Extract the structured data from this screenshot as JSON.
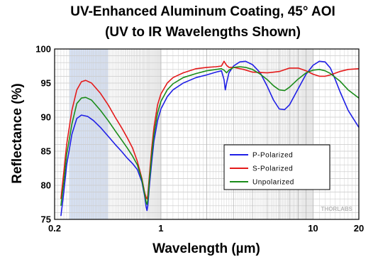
{
  "chart_data": {
    "type": "line",
    "title": "UV-Enhanced Aluminum Coating, 45° AOI",
    "subtitle": "(UV to IR Wavelengths Shown)",
    "xlabel": "Wavelength (µm)",
    "ylabel": "Reflectance (%)",
    "xscale": "log",
    "xlim": [
      0.2,
      20
    ],
    "ylim": [
      75,
      100
    ],
    "xticks": [
      {
        "value": 0.2,
        "label": "0.2"
      },
      {
        "value": 1,
        "label": "1"
      },
      {
        "value": 10,
        "label": "10"
      },
      {
        "value": 20,
        "label": "20"
      }
    ],
    "yticks": [
      75,
      80,
      85,
      90,
      95,
      100
    ],
    "grid": true,
    "highlight_band": {
      "x": [
        0.25,
        0.45
      ],
      "color": "#d6e0f2"
    },
    "legend_position": "bottom-right",
    "watermark": "THORLABS",
    "series": [
      {
        "name": "P-Polarized",
        "color": "#1f1fe6",
        "points": [
          [
            0.22,
            75.5
          ],
          [
            0.23,
            79
          ],
          [
            0.24,
            83
          ],
          [
            0.26,
            87.5
          ],
          [
            0.28,
            89.8
          ],
          [
            0.3,
            90.3
          ],
          [
            0.33,
            90.1
          ],
          [
            0.36,
            89.5
          ],
          [
            0.4,
            88.5
          ],
          [
            0.45,
            87.2
          ],
          [
            0.5,
            86
          ],
          [
            0.55,
            85
          ],
          [
            0.6,
            84
          ],
          [
            0.65,
            83.2
          ],
          [
            0.7,
            82.3
          ],
          [
            0.75,
            80.5
          ],
          [
            0.78,
            78.5
          ],
          [
            0.8,
            76.8
          ],
          [
            0.81,
            76.3
          ],
          [
            0.82,
            77
          ],
          [
            0.84,
            80
          ],
          [
            0.87,
            83.5
          ],
          [
            0.9,
            86.5
          ],
          [
            0.95,
            89.5
          ],
          [
            1.0,
            91.2
          ],
          [
            1.1,
            93
          ],
          [
            1.2,
            94
          ],
          [
            1.4,
            95
          ],
          [
            1.7,
            95.8
          ],
          [
            2.0,
            96.2
          ],
          [
            2.3,
            96.6
          ],
          [
            2.5,
            96.8
          ],
          [
            2.6,
            95.5
          ],
          [
            2.65,
            94
          ],
          [
            2.7,
            95
          ],
          [
            2.8,
            96.5
          ],
          [
            3.0,
            97.5
          ],
          [
            3.3,
            98.1
          ],
          [
            3.6,
            98.2
          ],
          [
            4.0,
            97.7
          ],
          [
            4.5,
            96.5
          ],
          [
            5.0,
            94.5
          ],
          [
            5.5,
            92.5
          ],
          [
            6.0,
            91.2
          ],
          [
            6.5,
            91.1
          ],
          [
            7.0,
            91.8
          ],
          [
            8.0,
            94.2
          ],
          [
            9.0,
            96.3
          ],
          [
            10,
            97.6
          ],
          [
            11,
            98.2
          ],
          [
            12,
            98.1
          ],
          [
            13,
            97.2
          ],
          [
            14,
            95.5
          ],
          [
            15,
            93.8
          ],
          [
            17,
            91
          ],
          [
            20,
            88.5
          ]
        ]
      },
      {
        "name": "S-Polarized",
        "color": "#e41a1a",
        "points": [
          [
            0.22,
            78
          ],
          [
            0.23,
            82
          ],
          [
            0.24,
            86
          ],
          [
            0.26,
            91
          ],
          [
            0.28,
            94
          ],
          [
            0.3,
            95.2
          ],
          [
            0.32,
            95.4
          ],
          [
            0.35,
            95
          ],
          [
            0.4,
            93.5
          ],
          [
            0.45,
            91.8
          ],
          [
            0.5,
            90
          ],
          [
            0.55,
            88.5
          ],
          [
            0.6,
            87
          ],
          [
            0.65,
            85.5
          ],
          [
            0.7,
            83.5
          ],
          [
            0.75,
            81
          ],
          [
            0.78,
            79
          ],
          [
            0.8,
            78.2
          ],
          [
            0.81,
            78
          ],
          [
            0.82,
            78.5
          ],
          [
            0.84,
            81.5
          ],
          [
            0.87,
            85.5
          ],
          [
            0.9,
            88.5
          ],
          [
            0.95,
            91.8
          ],
          [
            1.0,
            93.4
          ],
          [
            1.1,
            95
          ],
          [
            1.2,
            95.8
          ],
          [
            1.4,
            96.5
          ],
          [
            1.7,
            97.1
          ],
          [
            2.0,
            97.3
          ],
          [
            2.3,
            97.4
          ],
          [
            2.5,
            97.5
          ],
          [
            2.6,
            98.2
          ],
          [
            2.7,
            97.6
          ],
          [
            2.8,
            97.3
          ],
          [
            3.0,
            97.3
          ],
          [
            3.5,
            97
          ],
          [
            4.0,
            96.6
          ],
          [
            5.0,
            96.5
          ],
          [
            6.0,
            96.7
          ],
          [
            7.0,
            97.2
          ],
          [
            8.0,
            97.2
          ],
          [
            9.0,
            96.8
          ],
          [
            10,
            96.3
          ],
          [
            11,
            96
          ],
          [
            12,
            96
          ],
          [
            13,
            96.2
          ],
          [
            15,
            96.7
          ],
          [
            17,
            97
          ],
          [
            20,
            97.1
          ]
        ]
      },
      {
        "name": "Unpolarized",
        "color": "#1a8c1a",
        "points": [
          [
            0.22,
            77
          ],
          [
            0.23,
            80.5
          ],
          [
            0.24,
            84.5
          ],
          [
            0.26,
            89
          ],
          [
            0.28,
            92
          ],
          [
            0.3,
            92.8
          ],
          [
            0.32,
            92.9
          ],
          [
            0.35,
            92.5
          ],
          [
            0.4,
            91
          ],
          [
            0.45,
            89.5
          ],
          [
            0.5,
            88
          ],
          [
            0.55,
            86.7
          ],
          [
            0.6,
            85.5
          ],
          [
            0.65,
            84.3
          ],
          [
            0.7,
            83
          ],
          [
            0.75,
            80.8
          ],
          [
            0.78,
            78.8
          ],
          [
            0.8,
            77.5
          ],
          [
            0.81,
            77.2
          ],
          [
            0.82,
            77.8
          ],
          [
            0.84,
            80.8
          ],
          [
            0.87,
            84.5
          ],
          [
            0.9,
            87.5
          ],
          [
            0.95,
            90.6
          ],
          [
            1.0,
            92.3
          ],
          [
            1.1,
            94
          ],
          [
            1.2,
            94.9
          ],
          [
            1.4,
            95.8
          ],
          [
            1.7,
            96.4
          ],
          [
            2.0,
            96.8
          ],
          [
            2.3,
            97
          ],
          [
            2.5,
            97.1
          ],
          [
            2.6,
            96.9
          ],
          [
            2.7,
            96.5
          ],
          [
            2.8,
            96.9
          ],
          [
            3.0,
            97.3
          ],
          [
            3.3,
            97.4
          ],
          [
            3.6,
            97.3
          ],
          [
            4.0,
            97
          ],
          [
            4.5,
            96.3
          ],
          [
            5.0,
            95.5
          ],
          [
            5.5,
            94.6
          ],
          [
            6.0,
            94
          ],
          [
            6.5,
            93.9
          ],
          [
            7.0,
            94.4
          ],
          [
            8.0,
            95.6
          ],
          [
            9.0,
            96.5
          ],
          [
            10,
            96.9
          ],
          [
            11,
            97
          ],
          [
            12,
            96.8
          ],
          [
            13,
            96.4
          ],
          [
            15,
            95.3
          ],
          [
            17,
            94
          ],
          [
            20,
            92.8
          ]
        ]
      }
    ]
  }
}
